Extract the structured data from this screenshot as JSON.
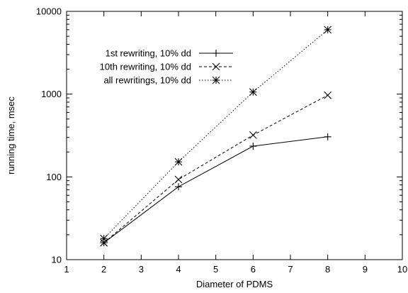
{
  "chart_data": {
    "type": "line",
    "title": "",
    "xlabel": "Diameter of PDMS",
    "ylabel": "running time, msec",
    "xlim": [
      1,
      10
    ],
    "ylim": [
      10,
      10000
    ],
    "yscale": "log",
    "xticks": [
      "1",
      "2",
      "3",
      "4",
      "5",
      "6",
      "7",
      "8",
      "9",
      "10"
    ],
    "yticks": [
      "10",
      "100",
      "1000",
      "10000"
    ],
    "grid": false,
    "legend_position": "top-left",
    "x": [
      2,
      4,
      6,
      8
    ],
    "series": [
      {
        "name": "1st rewriting, 10% dd",
        "values": [
          16,
          76,
          235,
          305
        ],
        "line_style": "solid",
        "marker": "plus"
      },
      {
        "name": "10th rewriting, 10% dd",
        "values": [
          16,
          93,
          320,
          970
        ],
        "line_style": "dashed",
        "marker": "x"
      },
      {
        "name": "all rewritings, 10% dd",
        "values": [
          18,
          152,
          1060,
          6000
        ],
        "line_style": "dotted",
        "marker": "star"
      }
    ]
  }
}
